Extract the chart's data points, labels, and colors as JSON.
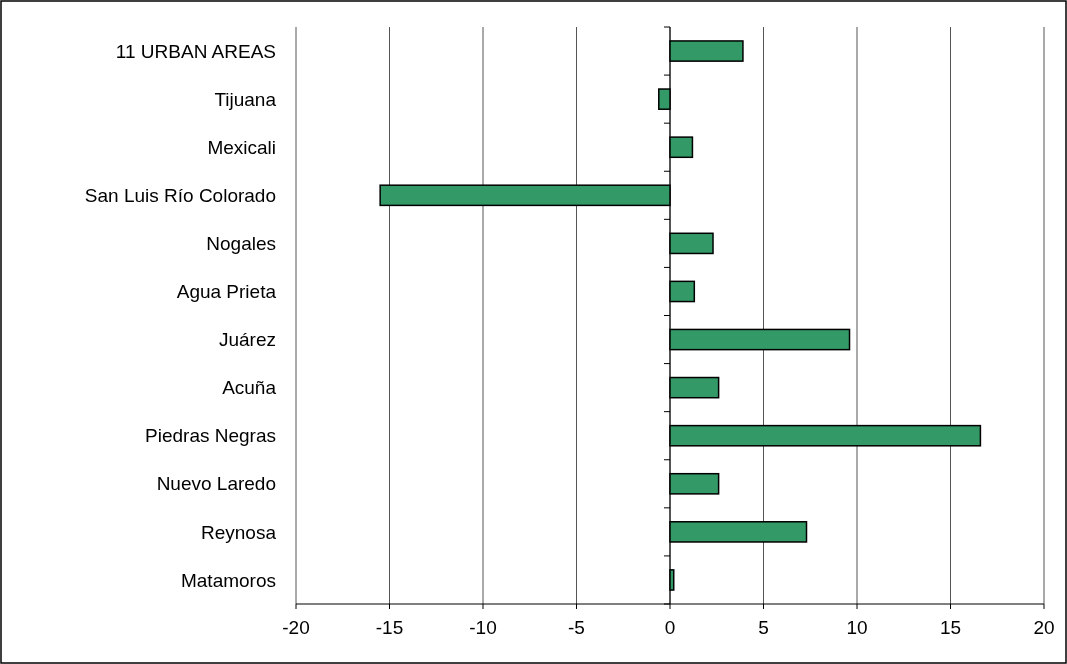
{
  "chart_data": {
    "type": "bar",
    "orientation": "horizontal",
    "categories": [
      "11 URBAN AREAS",
      "Tijuana",
      "Mexicali",
      "San Luis Río Colorado",
      "Nogales",
      "Agua Prieta",
      "Juárez",
      "Acuña",
      "Piedras Negras",
      "Nuevo Laredo",
      "Reynosa",
      "Matamoros"
    ],
    "values": [
      3.9,
      -0.6,
      1.2,
      -15.5,
      2.3,
      1.3,
      9.6,
      2.6,
      16.6,
      2.6,
      7.3,
      0.2
    ],
    "color": "#339966",
    "xlim": [
      -20,
      20
    ],
    "xticks": [
      -20,
      -15,
      -10,
      -5,
      0,
      5,
      10,
      15,
      20
    ],
    "grid": "x"
  }
}
